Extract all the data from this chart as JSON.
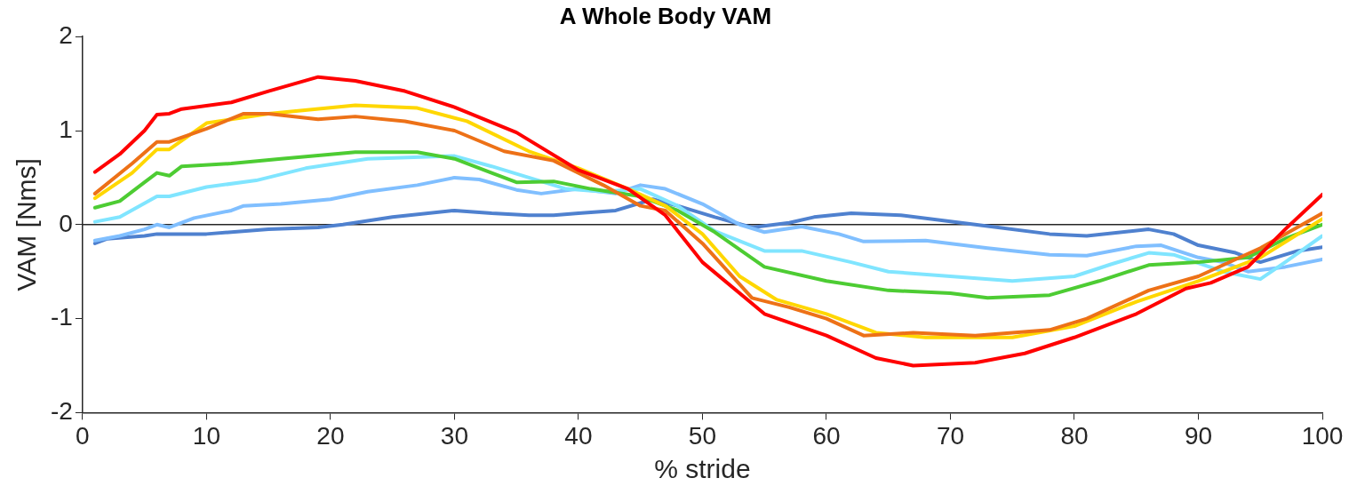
{
  "chart_data": {
    "type": "line",
    "title": "A Whole Body VAM",
    "xlabel": "% stride",
    "ylabel": "VAM [Nms]",
    "xlim": [
      0,
      100
    ],
    "xticks": [
      0,
      10,
      20,
      30,
      40,
      50,
      60,
      70,
      80,
      90,
      100
    ],
    "ylim": [
      -2,
      2
    ],
    "yticks": [
      -2,
      -1,
      0,
      1,
      2
    ],
    "grid": false,
    "legend": false,
    "marker": "none",
    "line_style": "solid",
    "ref_lines": [
      {
        "axis": "y",
        "value": 0,
        "color": "#262626"
      }
    ],
    "series": [
      {
        "color": "#ff0000",
        "x": [
          1,
          3,
          5,
          6,
          7,
          8,
          12,
          15,
          19,
          22,
          26,
          30,
          35,
          40,
          44,
          47,
          50,
          55,
          60,
          64,
          67,
          72,
          76,
          80,
          85,
          89,
          91,
          94,
          97,
          100
        ],
        "values": [
          0.56,
          0.75,
          1.0,
          1.17,
          1.18,
          1.23,
          1.3,
          1.42,
          1.57,
          1.53,
          1.42,
          1.25,
          0.98,
          0.58,
          0.38,
          0.1,
          -0.4,
          -0.95,
          -1.18,
          -1.42,
          -1.5,
          -1.47,
          -1.37,
          -1.2,
          -0.95,
          -0.68,
          -0.62,
          -0.45,
          -0.05,
          0.32
        ]
      },
      {
        "color": "#ed7117",
        "x": [
          1,
          4,
          6,
          7,
          10,
          13,
          15,
          19,
          22,
          26,
          30,
          34,
          38,
          42,
          45,
          47,
          50,
          54,
          57,
          60,
          63,
          67,
          72,
          78,
          81,
          86,
          90,
          95,
          100
        ],
        "values": [
          0.33,
          0.65,
          0.88,
          0.88,
          1.02,
          1.18,
          1.18,
          1.12,
          1.15,
          1.1,
          1.0,
          0.78,
          0.68,
          0.42,
          0.2,
          0.15,
          -0.2,
          -0.78,
          -0.88,
          -1.0,
          -1.18,
          -1.15,
          -1.18,
          -1.12,
          -1.0,
          -0.7,
          -0.55,
          -0.25,
          0.12
        ]
      },
      {
        "color": "#ffd700",
        "x": [
          1,
          4,
          6,
          7,
          10,
          15,
          22,
          27,
          31,
          36,
          40,
          44,
          47,
          50,
          53,
          56,
          60,
          64,
          68,
          75,
          80,
          85,
          90,
          95,
          100
        ],
        "values": [
          0.28,
          0.55,
          0.8,
          0.8,
          1.08,
          1.18,
          1.27,
          1.24,
          1.1,
          0.78,
          0.6,
          0.38,
          0.2,
          -0.1,
          -0.55,
          -0.8,
          -0.95,
          -1.15,
          -1.2,
          -1.2,
          -1.08,
          -0.82,
          -0.6,
          -0.35,
          0.06
        ]
      },
      {
        "color": "#4dcc33",
        "x": [
          1,
          3,
          5,
          6,
          7,
          8,
          12,
          16,
          22,
          27,
          30,
          33,
          35,
          38,
          41,
          45,
          48,
          51,
          55,
          60,
          65,
          70,
          73,
          78,
          82,
          86,
          90,
          94,
          97,
          100
        ],
        "values": [
          0.18,
          0.25,
          0.45,
          0.55,
          0.52,
          0.62,
          0.65,
          0.7,
          0.77,
          0.77,
          0.7,
          0.55,
          0.45,
          0.46,
          0.38,
          0.3,
          0.15,
          -0.08,
          -0.45,
          -0.6,
          -0.7,
          -0.73,
          -0.78,
          -0.75,
          -0.6,
          -0.43,
          -0.4,
          -0.35,
          -0.15,
          0.0
        ]
      },
      {
        "color": "#80e5ff",
        "x": [
          1,
          3,
          6,
          7,
          10,
          14,
          18,
          23,
          30,
          33,
          36,
          39,
          42,
          45,
          48,
          51,
          55,
          58,
          62,
          65,
          70,
          75,
          80,
          83,
          86,
          88,
          92,
          95,
          97,
          100
        ],
        "values": [
          0.03,
          0.08,
          0.3,
          0.3,
          0.4,
          0.47,
          0.6,
          0.7,
          0.73,
          0.62,
          0.5,
          0.38,
          0.35,
          0.38,
          0.2,
          -0.07,
          -0.28,
          -0.28,
          -0.4,
          -0.5,
          -0.55,
          -0.6,
          -0.55,
          -0.42,
          -0.3,
          -0.32,
          -0.5,
          -0.58,
          -0.4,
          -0.12
        ]
      },
      {
        "color": "#80bfff",
        "x": [
          1,
          3,
          5,
          6,
          7,
          9,
          12,
          13,
          16,
          20,
          23,
          27,
          30,
          32,
          35,
          37,
          40,
          43,
          45,
          47,
          50,
          53,
          55,
          58,
          61,
          63,
          68,
          73,
          78,
          81,
          85,
          87,
          90,
          92,
          94,
          97,
          100
        ],
        "values": [
          -0.17,
          -0.12,
          -0.05,
          0.0,
          -0.03,
          0.07,
          0.15,
          0.2,
          0.22,
          0.27,
          0.35,
          0.42,
          0.5,
          0.48,
          0.37,
          0.33,
          0.38,
          0.33,
          0.42,
          0.38,
          0.22,
          0.0,
          -0.08,
          -0.02,
          -0.1,
          -0.18,
          -0.17,
          -0.25,
          -0.32,
          -0.33,
          -0.23,
          -0.22,
          -0.35,
          -0.4,
          -0.5,
          -0.45,
          -0.37
        ]
      },
      {
        "color": "#4f81cf",
        "x": [
          1,
          2,
          5,
          6,
          10,
          15,
          19,
          21,
          25,
          30,
          33,
          36,
          38,
          40,
          43,
          46,
          48,
          51,
          54,
          57,
          59,
          62,
          66,
          72,
          78,
          81,
          86,
          88,
          90,
          93,
          95,
          98,
          100
        ],
        "values": [
          -0.2,
          -0.15,
          -0.12,
          -0.1,
          -0.1,
          -0.05,
          -0.03,
          0.0,
          0.08,
          0.15,
          0.12,
          0.1,
          0.1,
          0.12,
          0.15,
          0.27,
          0.2,
          0.08,
          -0.03,
          0.02,
          0.08,
          0.12,
          0.1,
          0.0,
          -0.1,
          -0.12,
          -0.05,
          -0.1,
          -0.22,
          -0.3,
          -0.4,
          -0.28,
          -0.24
        ]
      }
    ]
  }
}
